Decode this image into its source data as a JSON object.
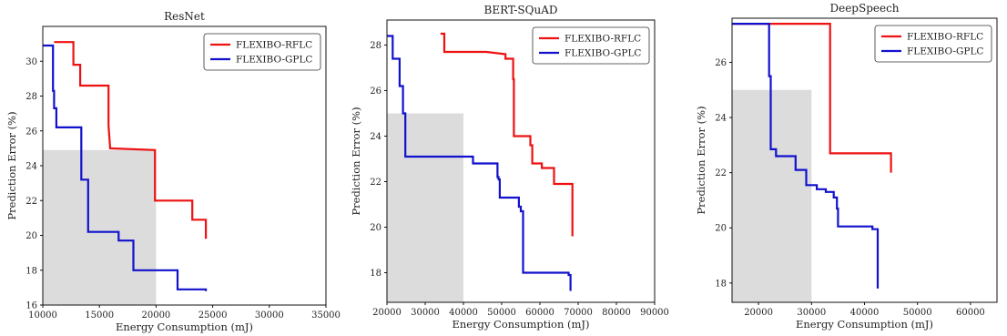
{
  "chart_data": [
    {
      "type": "line",
      "title": "ResNet",
      "xlabel": "Energy Consumption (mJ)",
      "ylabel": "Prediction Error (%)",
      "xlim": [
        10000,
        35000
      ],
      "ylim": [
        16,
        32
      ],
      "xticks": [
        10000,
        15000,
        20000,
        25000,
        30000,
        35000
      ],
      "yticks": [
        16,
        18,
        20,
        22,
        24,
        26,
        28,
        30
      ],
      "xtick_labels": [
        "10000",
        "15000",
        "20000",
        "25000",
        "30000",
        "35000"
      ],
      "ytick_labels": [
        "16",
        "18",
        "20",
        "22",
        "24",
        "26",
        "28",
        "30"
      ],
      "shaded_region": {
        "x": [
          10000,
          20000
        ],
        "y": [
          16,
          24.9
        ]
      },
      "legend_position": "top-right",
      "series": [
        {
          "name": "FLEXIBO-RFLC",
          "color": "#ee1111",
          "step": true,
          "x": [
            11000,
            12700,
            12700,
            13300,
            13300,
            15800,
            15800,
            15950,
            19900,
            19900,
            23200,
            23200,
            24400,
            24400
          ],
          "y": [
            31.1,
            31.1,
            29.8,
            29.8,
            28.6,
            28.6,
            26.3,
            25.0,
            24.9,
            22.0,
            22.0,
            20.9,
            20.9,
            19.8
          ]
        },
        {
          "name": "FLEXIBO-GPLC",
          "color": "#1111cc",
          "step": true,
          "x": [
            10000,
            10900,
            10900,
            11000,
            11000,
            11200,
            11200,
            13400,
            13400,
            14000,
            14000,
            16700,
            16700,
            18000,
            18000,
            21900,
            21900,
            24400,
            24400
          ],
          "y": [
            30.9,
            30.9,
            28.3,
            28.3,
            27.3,
            27.3,
            26.2,
            26.2,
            23.2,
            23.2,
            20.2,
            20.2,
            19.7,
            19.7,
            18.0,
            18.0,
            16.9,
            16.9,
            16.8
          ]
        }
      ]
    },
    {
      "type": "line",
      "title": "BERT-SQuAD",
      "xlabel": "Energy Consumption (mJ)",
      "ylabel": "Prediction Error (%)",
      "xlim": [
        20000,
        90000
      ],
      "ylim": [
        16.7,
        29.1
      ],
      "xticks": [
        20000,
        30000,
        40000,
        50000,
        60000,
        70000,
        80000,
        90000
      ],
      "yticks": [
        18,
        20,
        22,
        24,
        26,
        28
      ],
      "xtick_labels": [
        "20000",
        "30000",
        "40000",
        "50000",
        "60000",
        "70000",
        "80000",
        "90000"
      ],
      "ytick_labels": [
        "18",
        "20",
        "22",
        "24",
        "26",
        "28"
      ],
      "shaded_region": {
        "x": [
          20000,
          40000
        ],
        "y": [
          16.7,
          25.0
        ]
      },
      "legend_position": "top-right",
      "series": [
        {
          "name": "FLEXIBO-RFLC",
          "color": "#ee1111",
          "step": true,
          "x": [
            34000,
            35000,
            35000,
            43000,
            46000,
            51000,
            51000,
            53000,
            53000,
            53200,
            53200,
            57500,
            57500,
            58000,
            58000,
            60500,
            60500,
            63700,
            63700,
            68500,
            68500
          ],
          "y": [
            28.5,
            28.5,
            27.7,
            27.7,
            27.7,
            27.6,
            27.4,
            27.4,
            26.5,
            26.5,
            24.0,
            24.0,
            23.6,
            23.6,
            22.8,
            22.8,
            22.6,
            22.6,
            21.9,
            21.9,
            19.6
          ]
        },
        {
          "name": "FLEXIBO-GPLC",
          "color": "#1111cc",
          "step": true,
          "x": [
            20000,
            21500,
            21500,
            23300,
            23300,
            24200,
            24200,
            24800,
            24800,
            42500,
            42500,
            48900,
            48900,
            49200,
            49200,
            49500,
            49500,
            54500,
            54500,
            55000,
            55000,
            55600,
            55600,
            67500,
            67500,
            68000,
            68000
          ],
          "y": [
            28.4,
            28.4,
            27.4,
            27.4,
            26.2,
            26.2,
            25.0,
            25.0,
            23.1,
            23.1,
            22.8,
            22.8,
            22.2,
            22.2,
            22.1,
            22.1,
            21.3,
            21.3,
            20.9,
            20.9,
            20.7,
            20.7,
            18.0,
            18.0,
            17.9,
            17.9,
            17.2
          ]
        }
      ]
    },
    {
      "type": "line",
      "title": "DeepSpeech",
      "xlabel": "Energy Consumption (mJ)",
      "ylabel": "Prediction Error (%)",
      "xlim": [
        15000,
        65000
      ],
      "ylim": [
        17.3,
        27.6
      ],
      "xticks": [
        20000,
        30000,
        40000,
        50000,
        60000
      ],
      "yticks": [
        18,
        20,
        22,
        24,
        26
      ],
      "xtick_labels": [
        "20000",
        "30000",
        "40000",
        "50000",
        "60000"
      ],
      "ytick_labels": [
        "18",
        "20",
        "22",
        "24",
        "26"
      ],
      "shaded_region": {
        "x": [
          15000,
          30000
        ],
        "y": [
          17.3,
          25.0
        ]
      },
      "legend_position": "top-right",
      "series": [
        {
          "name": "FLEXIBO-RFLC",
          "color": "#ee1111",
          "step": true,
          "x": [
            15000,
            33500,
            33500,
            45000,
            45000
          ],
          "y": [
            27.4,
            27.4,
            22.7,
            22.7,
            22.0
          ]
        },
        {
          "name": "FLEXIBO-GPLC",
          "color": "#1111cc",
          "step": true,
          "x": [
            15000,
            22000,
            22000,
            22300,
            22300,
            23300,
            23300,
            27000,
            27000,
            29000,
            29000,
            31000,
            31000,
            32700,
            32700,
            34200,
            34200,
            34800,
            34800,
            35000,
            35000,
            41500,
            41500,
            42500,
            42500
          ],
          "y": [
            27.4,
            27.4,
            25.5,
            25.5,
            22.85,
            22.85,
            22.6,
            22.6,
            22.1,
            22.1,
            21.55,
            21.55,
            21.4,
            21.4,
            21.3,
            21.3,
            21.1,
            21.1,
            20.7,
            20.7,
            20.05,
            20.05,
            19.95,
            19.95,
            17.8
          ]
        }
      ]
    }
  ]
}
